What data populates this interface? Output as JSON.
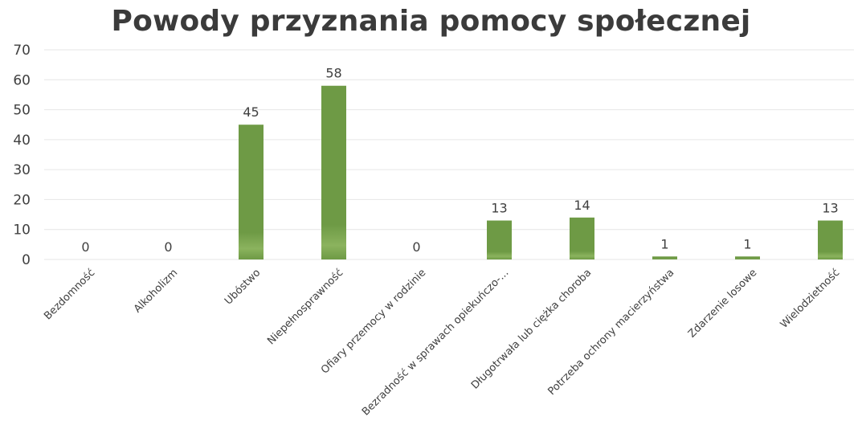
{
  "chart_data": {
    "type": "bar",
    "title": "Powody przyznania pomocy społecznej",
    "xlabel": "",
    "ylabel": "",
    "ylim": [
      0,
      70
    ],
    "yticks": [
      0,
      10,
      20,
      30,
      40,
      50,
      60,
      70
    ],
    "grid": true,
    "legend": "none",
    "bar_color": "#6e9a45",
    "bar_color_light": "#8bb35e",
    "grid_color": "#e6e6e6",
    "text_color": "#404040",
    "title_color": "#3b3b3b",
    "categories": [
      "Bezdomność",
      "Alkoholizm",
      "Ubóstwo",
      "Niepełnosprawność",
      "Ofiary przemocy w rodzinie",
      "Bezradność w sprawach opiekuńczo-...",
      "Długotrwała lub ciężka choroba",
      "Potrzeba ochrony macierzyństwa",
      "Zdarzenie losowe",
      "Wielodzietność"
    ],
    "values": [
      0,
      0,
      45,
      58,
      0,
      13,
      14,
      1,
      1,
      13
    ]
  }
}
